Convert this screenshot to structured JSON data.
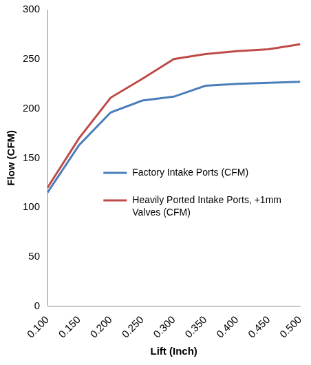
{
  "chart_data": {
    "type": "line",
    "x_label": "Lift (Inch)",
    "y_label": "Flow (CFM)",
    "categories": [
      "0.100",
      "0.150",
      "0.200",
      "0.250",
      "0.300",
      "0.350",
      "0.400",
      "0.450",
      "0.500"
    ],
    "series": [
      {
        "name": "Factory Intake Ports (CFM)",
        "color": "#4a7ebb",
        "values": [
          115,
          163,
          196,
          208,
          212,
          223,
          225,
          226,
          227
        ]
      },
      {
        "name": "Heavily Ported Intake Ports, +1mm Valves (CFM)",
        "color": "#be4b48",
        "values": [
          120,
          170,
          211,
          230,
          250,
          255,
          258,
          260,
          265
        ]
      }
    ],
    "ylim": [
      0,
      300
    ],
    "yticks": [
      0,
      50,
      100,
      150,
      200,
      250,
      300
    ],
    "grid": false,
    "legend": "right"
  }
}
